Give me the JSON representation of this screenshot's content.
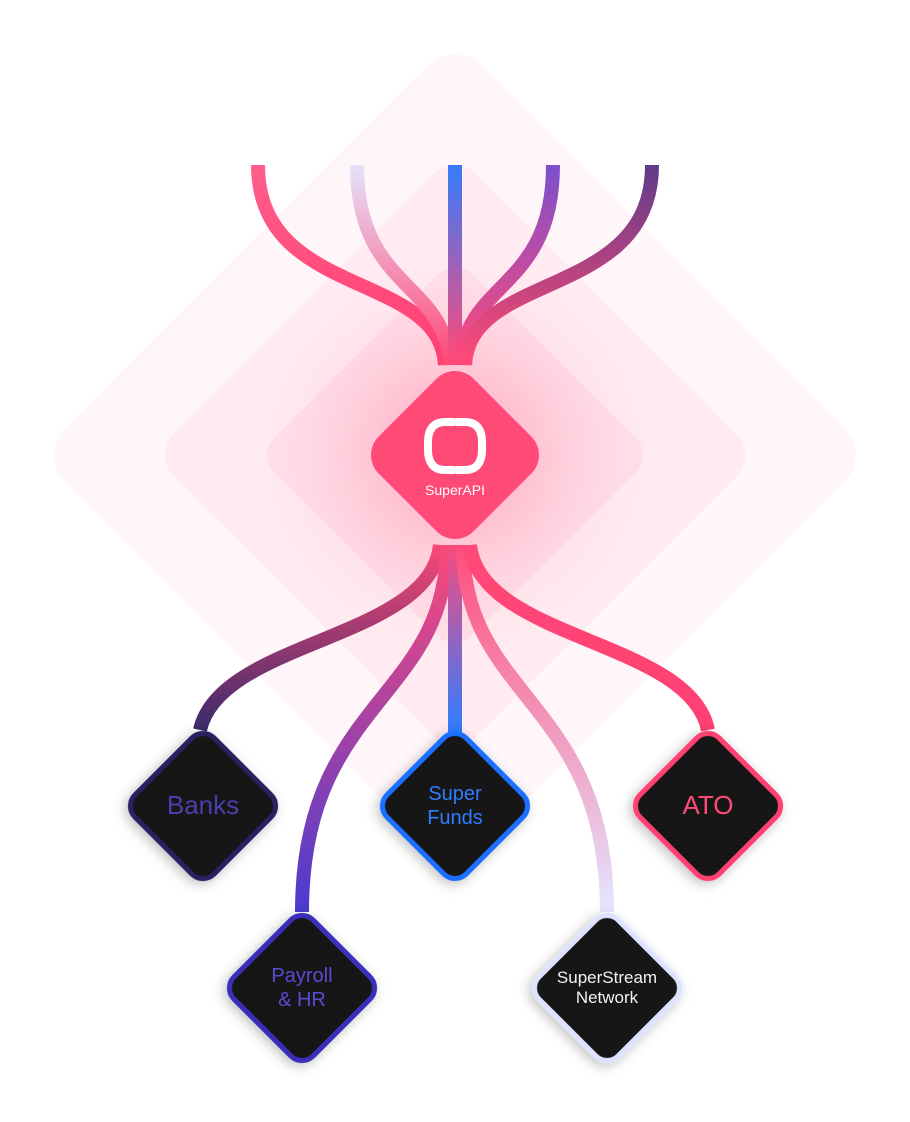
{
  "hub": {
    "label": "SuperAPI",
    "color": "#ff4a78",
    "logo_icon": "superapi-logo-icon"
  },
  "nodes": [
    {
      "id": "banks",
      "label_lines": [
        "Banks"
      ],
      "border": "#2a2260",
      "text": "#4b3fb0"
    },
    {
      "id": "super-funds",
      "label_lines": [
        "Super",
        "Funds"
      ],
      "border": "#1f6fff",
      "text": "#2f7dff"
    },
    {
      "id": "ato",
      "label_lines": [
        "ATO"
      ],
      "border": "#ff3f72",
      "text": "#ff4a78"
    },
    {
      "id": "payroll-hr",
      "label_lines": [
        "Payroll",
        "& HR"
      ],
      "border": "#3a2fb8",
      "text": "#5a4bd6"
    },
    {
      "id": "superstream-network",
      "label_lines": [
        "SuperStream",
        "Network"
      ],
      "border": "#dde3ff",
      "text": "#f2f2f7"
    }
  ],
  "colors": {
    "glow": "#ff6d93",
    "node_fill": "#141418",
    "background": "#ffffff"
  }
}
